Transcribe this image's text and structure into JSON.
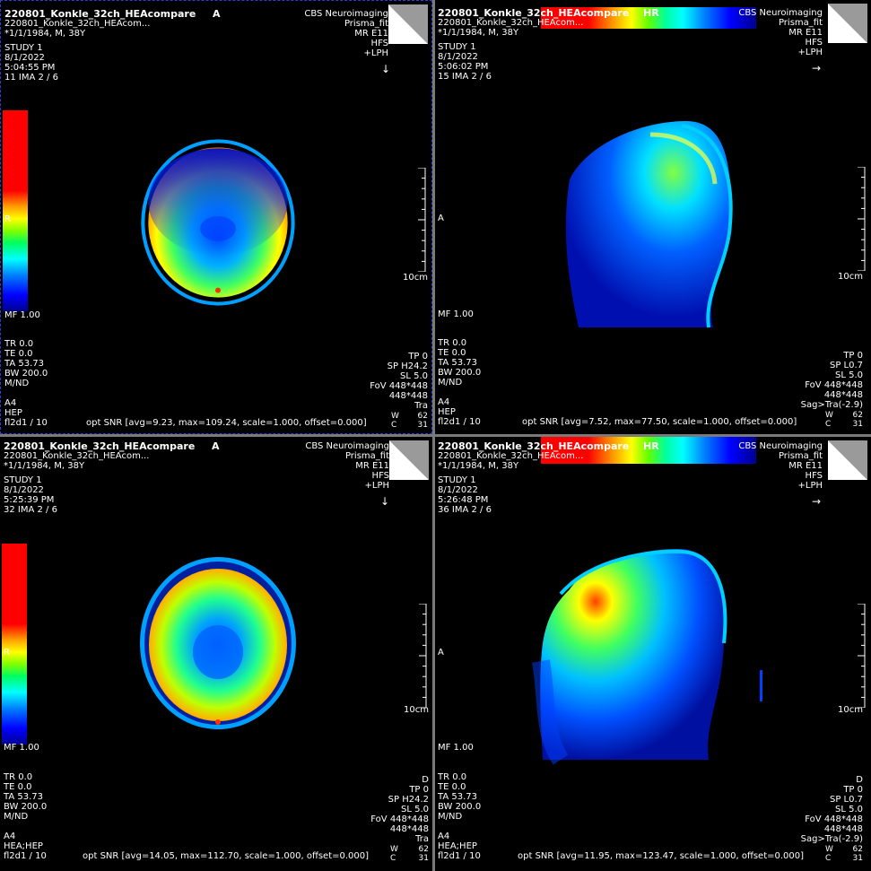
{
  "viewports": [
    {
      "id": "tl",
      "title": "220801_Konkle_32ch_HEAcompare",
      "orientation_marker": "A",
      "series": "220801_Konkle_32ch_HEAcom...",
      "patient": "*1/1/1984, M, 38Y",
      "study": "STUDY 1",
      "date": "8/1/2022",
      "time": "5:04:55 PM",
      "ima": "11 IMA 2 / 6",
      "institution": "CBS Neuroimaging",
      "scanner": "Prisma_fit",
      "version": "MR E11",
      "position": "HFS",
      "direction": "+LPH",
      "dir_arrow": "↓",
      "side_marker": "R",
      "mf": "MF 1.00",
      "ruler_label": "10cm",
      "tr": "TR 0.0",
      "te": "TE 0.0",
      "ta": "TA 53.73",
      "bw": "BW 200.0",
      "mnd": "M/ND",
      "a4": "A4",
      "coil": "HEP",
      "seq": "fl2d1 / 10",
      "d": "",
      "tp": "TP 0",
      "sp": "SP H24.2",
      "sl": "SL 5.0",
      "fov": "FoV 448*448",
      "matrix": "448*448",
      "plane": "Tra",
      "w": "W",
      "w_val": "62",
      "c": "C",
      "c_val": "31",
      "snr": "opt SNR [avg=9.23, max=109.24, scale=1.000, offset=0.000]"
    },
    {
      "id": "tr",
      "title": "220801_Konkle_32ch_HEAcompare",
      "orientation_marker": "HR",
      "series": "220801_Konkle_32ch_HEAcom...",
      "patient": "*1/1/1984, M, 38Y",
      "study": "STUDY 1",
      "date": "8/1/2022",
      "time": "5:06:02 PM",
      "ima": "15 IMA 2 / 6",
      "institution": "CBS Neuroimaging",
      "scanner": "Prisma_fit",
      "version": "MR E11",
      "position": "HFS",
      "direction": "+LPH",
      "dir_arrow": "→",
      "side_marker": "A",
      "mf": "MF 1.00",
      "ruler_label": "10cm",
      "tr": "TR 0.0",
      "te": "TE 0.0",
      "ta": "TA 53.73",
      "bw": "BW 200.0",
      "mnd": "M/ND",
      "a4": "A4",
      "coil": "HEP",
      "seq": "fl2d1 / 10",
      "d": "",
      "tp": "TP 0",
      "sp": "SP L0.7",
      "sl": "SL 5.0",
      "fov": "FoV 448*448",
      "matrix": "448*448",
      "plane": "Sag>Tra(-2.9)",
      "w": "W",
      "w_val": "62",
      "c": "C",
      "c_val": "31",
      "snr": "opt SNR [avg=7.52, max=77.50, scale=1.000, offset=0.000]"
    },
    {
      "id": "bl",
      "title": "220801_Konkle_32ch_HEAcompare",
      "orientation_marker": "A",
      "series": "220801_Konkle_32ch_HEAcom...",
      "patient": "*1/1/1984, M, 38Y",
      "study": "STUDY 1",
      "date": "8/1/2022",
      "time": "5:25:39 PM",
      "ima": "32 IMA 2 / 6",
      "institution": "CBS Neuroimaging",
      "scanner": "Prisma_fit",
      "version": "MR E11",
      "position": "HFS",
      "direction": "+LPH",
      "dir_arrow": "↓",
      "side_marker": "R",
      "mf": "MF 1.00",
      "ruler_label": "10cm",
      "tr": "TR 0.0",
      "te": "TE 0.0",
      "ta": "TA 53.73",
      "bw": "BW 200.0",
      "mnd": "M/ND",
      "a4": "A4",
      "coil": "HEA;HEP",
      "seq": "fl2d1 / 10",
      "d": "D",
      "tp": "TP 0",
      "sp": "SP H24.2",
      "sl": "SL 5.0",
      "fov": "FoV 448*448",
      "matrix": "448*448",
      "plane": "Tra",
      "w": "W",
      "w_val": "62",
      "c": "C",
      "c_val": "31",
      "snr": "opt SNR [avg=14.05, max=112.70, scale=1.000, offset=0.000]"
    },
    {
      "id": "br",
      "title": "220801_Konkle_32ch_HEAcompare",
      "orientation_marker": "HR",
      "series": "220801_Konkle_32ch_HEAcom...",
      "patient": "*1/1/1984, M, 38Y",
      "study": "STUDY 1",
      "date": "8/1/2022",
      "time": "5:26:48 PM",
      "ima": "36 IMA 2 / 6",
      "institution": "CBS Neuroimaging",
      "scanner": "Prisma_fit",
      "version": "MR E11",
      "position": "HFS",
      "direction": "+LPH",
      "dir_arrow": "→",
      "side_marker": "A",
      "mf": "MF 1.00",
      "ruler_label": "10cm",
      "tr": "TR 0.0",
      "te": "TE 0.0",
      "ta": "TA 53.73",
      "bw": "BW 200.0",
      "mnd": "M/ND",
      "a4": "A4",
      "coil": "HEA;HEP",
      "seq": "fl2d1 / 10",
      "d": "D",
      "tp": "TP 0",
      "sp": "SP L0.7",
      "sl": "SL 5.0",
      "fov": "FoV 448*448",
      "matrix": "448*448",
      "plane": "Sag>Tra(-2.9)",
      "w": "W",
      "w_val": "62",
      "c": "C",
      "c_val": "31",
      "snr": "opt SNR [avg=11.95, max=123.47, scale=1.000, offset=0.000]"
    }
  ]
}
